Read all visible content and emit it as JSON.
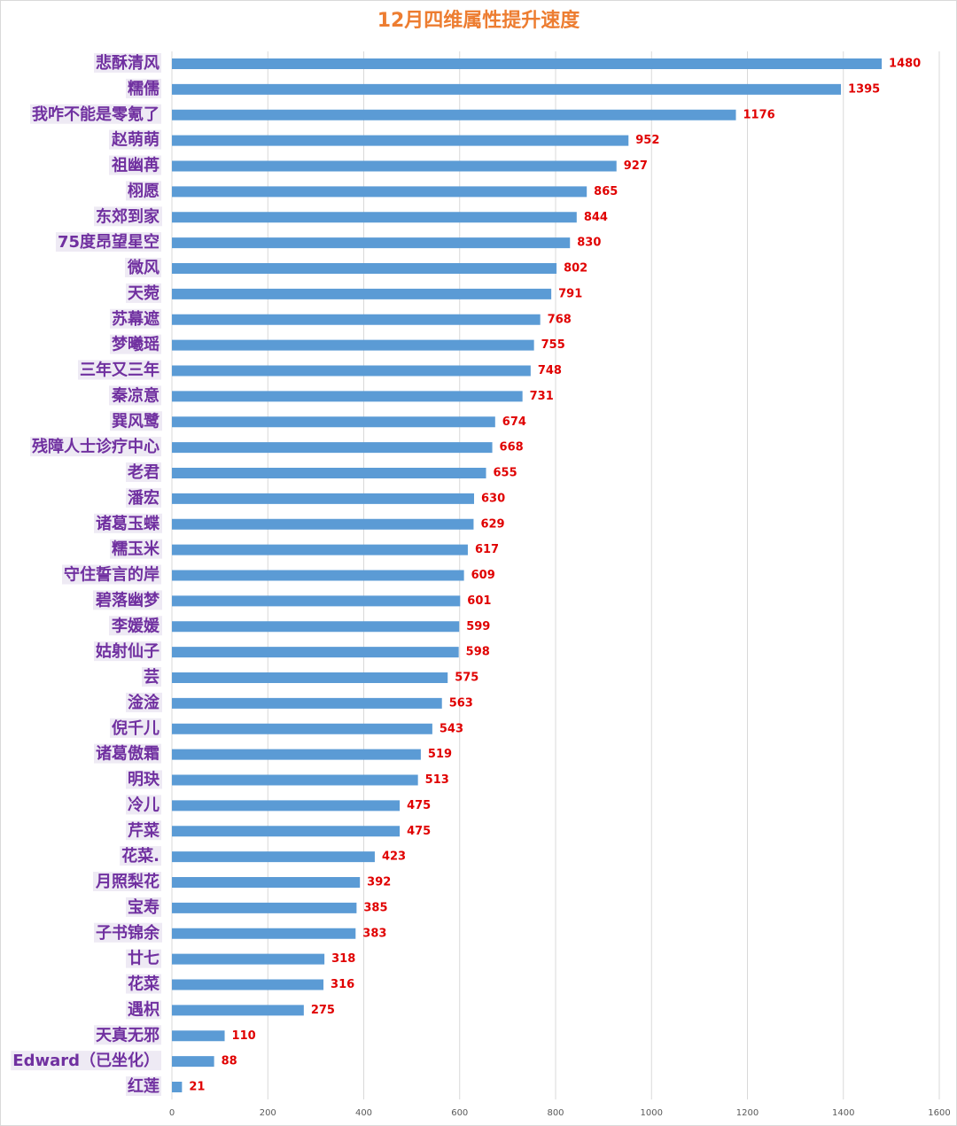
{
  "chart_data": {
    "type": "barh",
    "title": "12月四维属性提升速度",
    "categories": [
      "悲酥清风",
      "糯儒",
      "我咋不能是零氪了",
      "赵萌萌",
      "祖幽苒",
      "栩愿",
      "东郊到家",
      "75度昂望星空",
      "微风",
      "天菀",
      "苏幕遮",
      "梦曦瑶",
      "三年又三年",
      "秦凉意",
      "巽风鹭",
      "残障人士诊疗中心",
      "老君",
      "潘宏",
      "诸葛玉蝶",
      "糯玉米",
      "守住誓言的岸",
      "碧落幽梦",
      "李媛媛",
      "姑射仙子",
      "芸",
      "淦淦",
      "倪千儿",
      "诸葛傲霜",
      "明玦",
      "冷儿",
      "芹菜",
      "花菜.",
      "月照梨花",
      "宝寿",
      "子书锦余",
      "廿七",
      "花菜",
      "遇枳",
      "天真无邪",
      "Edward（已坐化）",
      "红莲"
    ],
    "values": [
      1480,
      1395,
      1176,
      952,
      927,
      865,
      844,
      830,
      802,
      791,
      768,
      755,
      748,
      731,
      674,
      668,
      655,
      630,
      629,
      617,
      609,
      601,
      599,
      598,
      575,
      563,
      543,
      519,
      513,
      475,
      475,
      423,
      392,
      385,
      383,
      318,
      316,
      275,
      110,
      88,
      21
    ],
    "color": "#5b9bd5",
    "label_color": "#7030a0",
    "value_label_color": "#e00000",
    "title_color": "#ed7d31",
    "xlim": [
      0,
      1600
    ],
    "xticks": [
      0,
      200,
      400,
      600,
      800,
      1000,
      1200,
      1400,
      1600
    ],
    "grid": true
  }
}
